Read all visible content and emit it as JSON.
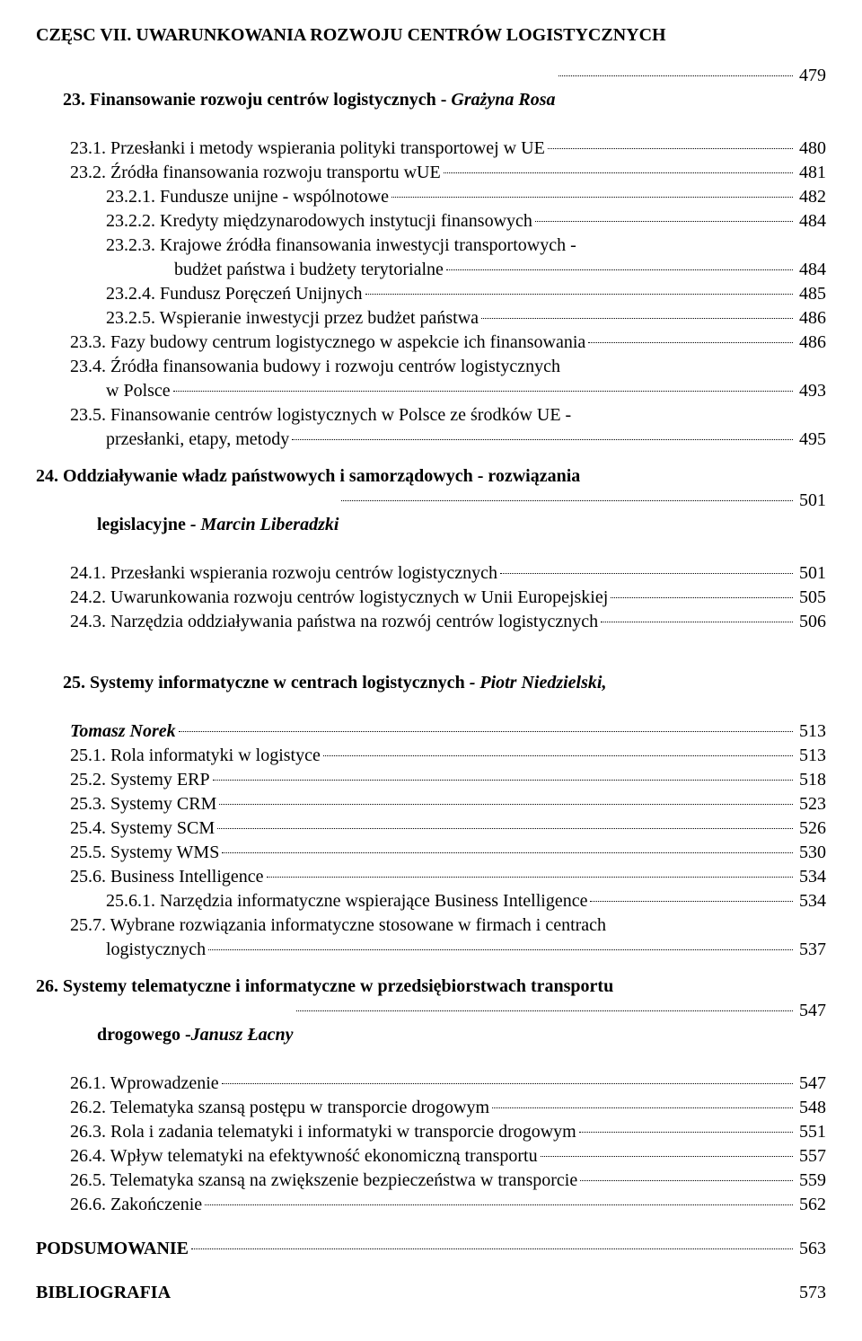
{
  "partTitle": "CZĘSC VII. UWARUNKOWANIA ROZWOJU CENTRÓW LOGISTYCZNYCH",
  "chap23": {
    "titlePrefix": "23. Finansowanie rozwoju centrów logistycznych - ",
    "titleAuthor": "Grażyna Rosa",
    "page": "479",
    "s1": {
      "label": "23.1. Przesłanki i metody wspierania polityki transportowej w UE",
      "page": "480"
    },
    "s2": {
      "label": "23.2. Źródła finansowania rozwoju transportu wUE",
      "page": "481"
    },
    "s21": {
      "label": "23.2.1. Fundusze unijne - wspólnotowe",
      "page": "482"
    },
    "s22": {
      "label": "23.2.2. Kredyty międzynarodowych instytucji finansowych",
      "page": "484"
    },
    "s23a": {
      "label": "23.2.3. Krajowe źródła finansowania inwestycji transportowych -"
    },
    "s23b": {
      "label": "budżet państwa i budżety terytorialne",
      "page": "484"
    },
    "s24": {
      "label": "23.2.4. Fundusz Poręczeń Unijnych",
      "page": "485"
    },
    "s25": {
      "label": "23.2.5. Wspieranie inwestycji przez budżet państwa",
      "page": "486"
    },
    "s3": {
      "label": "23.3. Fazy budowy centrum logistycznego w aspekcie ich finansowania",
      "page": "486"
    },
    "s4a": {
      "label": "23.4. Źródła finansowania budowy i rozwoju centrów logistycznych"
    },
    "s4b": {
      "label": "w Polsce",
      "page": "493"
    },
    "s5a": {
      "label": "23.5. Finansowanie centrów logistycznych w Polsce ze środków UE -"
    },
    "s5b": {
      "label": "przesłanki, etapy, metody",
      "page": "495"
    }
  },
  "chap24": {
    "titleLine1": "24. Oddziaływanie władz państwowych i samorządowych - rozwiązania",
    "titleLine2a": "legislacyjne",
    "titleLine2b": " - Marcin Liberadzki",
    "page": "501",
    "s1": {
      "label": "24.1. Przesłanki wspierania rozwoju centrów logistycznych",
      "page": "501"
    },
    "s2": {
      "label": "24.2. Uwarunkowania rozwoju centrów logistycznych w Unii Europejskiej",
      "page": "505"
    },
    "s3": {
      "label": "24.3. Narzędzia oddziaływania państwa na rozwój centrów logistycznych",
      "page": "506"
    }
  },
  "chap25": {
    "titleLine1a": "25. Systemy informatyczne w centrach logistycznych",
    "titleLine1b": " - Piotr Niedzielski,",
    "titleLine2": "Tomasz Norek",
    "page": "513",
    "s1": {
      "label": "25.1. Rola informatyki w logistyce",
      "page": "513"
    },
    "s2": {
      "label": "25.2. Systemy ERP",
      "page": "518"
    },
    "s3": {
      "label": "25.3. Systemy CRM",
      "page": "523"
    },
    "s4": {
      "label": "25.4. Systemy SCM",
      "page": "526"
    },
    "s5": {
      "label": "25.5. Systemy WMS",
      "page": "530"
    },
    "s6": {
      "label": "25.6. Business Intelligence",
      "page": "534"
    },
    "s61": {
      "label": "25.6.1. Narzędzia informatyczne wspierające Business Intelligence",
      "page": "534"
    },
    "s7a": {
      "label": "25.7. Wybrane rozwiązania informatyczne stosowane w firmach i centrach"
    },
    "s7b": {
      "label": "logistycznych",
      "page": "537"
    }
  },
  "chap26": {
    "titleLine1": "26. Systemy telematyczne i informatyczne w przedsiębiorstwach transportu",
    "titleLine2a": "drogowego -",
    "titleLine2b": "Janusz Łacny",
    "page": "547",
    "s1": {
      "label": "26.1. Wprowadzenie",
      "page": "547"
    },
    "s2": {
      "label": "26.2. Telematyka szansą postępu w transporcie drogowym",
      "page": "548"
    },
    "s3": {
      "label": "26.3. Rola i zadania telematyki i informatyki w transporcie drogowym",
      "page": "551"
    },
    "s4": {
      "label": "26.4. Wpływ telematyki na efektywność ekonomiczną transportu",
      "page": "557"
    },
    "s5": {
      "label": "26.5. Telematyka szansą na zwiększenie bezpieczeństwa w transporcie",
      "page": "559"
    },
    "s6": {
      "label": "26.6. Zakończenie",
      "page": "562"
    }
  },
  "summary": {
    "label": "PODSUMOWANIE",
    "page": "563"
  },
  "biblio": {
    "label": "BIBLIOGRAFIA",
    "page": "573"
  }
}
